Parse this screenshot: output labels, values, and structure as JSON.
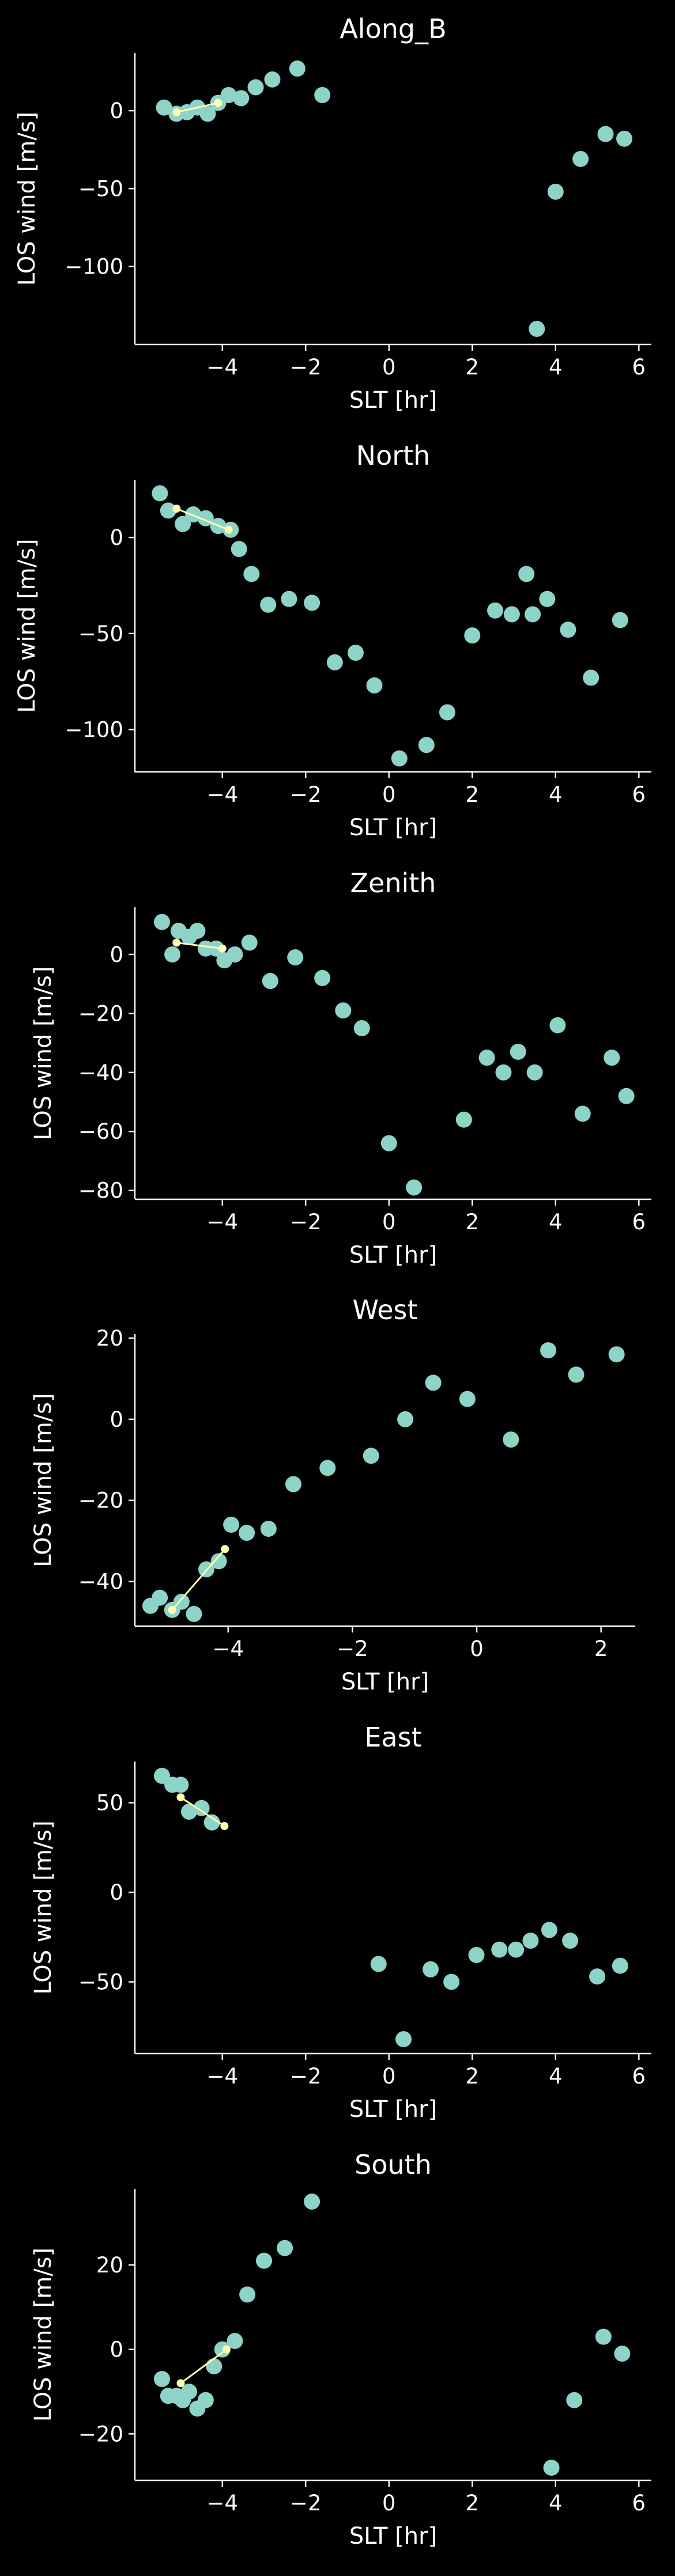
{
  "chart_data": [
    {
      "type": "scatter",
      "title": "Along_B",
      "xlabel": "SLT [hr]",
      "ylabel": "LOS wind [m/s]",
      "xlim": [
        -6.1,
        6.3
      ],
      "ylim": [
        -150,
        37
      ],
      "xticks": [
        -4,
        -2,
        0,
        2,
        4,
        6
      ],
      "yticks": [
        0,
        -50,
        -100
      ],
      "colors": {
        "points": "#8dd3c7",
        "fit": "#ffffb3",
        "axes": "#ffffff",
        "background": "#000000"
      },
      "x": [
        -5.4,
        -5.1,
        -4.85,
        -4.6,
        -4.35,
        -4.1,
        -3.85,
        -3.55,
        -3.2,
        -2.8,
        -2.2,
        -1.6,
        3.55,
        4.0,
        4.6,
        5.2,
        5.65
      ],
      "y": [
        2,
        -2,
        -1,
        2,
        -2,
        5,
        10,
        8,
        15,
        20,
        27,
        10,
        -140,
        -52,
        -31,
        -15,
        -18
      ],
      "fit_line": {
        "x": [
          -5.1,
          -4.1
        ],
        "y": [
          -1,
          5
        ]
      }
    },
    {
      "type": "scatter",
      "title": "North",
      "xlabel": "SLT [hr]",
      "ylabel": "LOS wind [m/s]",
      "xlim": [
        -6.1,
        6.3
      ],
      "ylim": [
        -122,
        30
      ],
      "xticks": [
        -4,
        -2,
        0,
        2,
        4,
        6
      ],
      "yticks": [
        0,
        -50,
        -100
      ],
      "colors": {
        "points": "#8dd3c7",
        "fit": "#ffffb3",
        "axes": "#ffffff",
        "background": "#000000"
      },
      "x": [
        -5.5,
        -5.3,
        -4.95,
        -4.7,
        -4.4,
        -4.1,
        -3.8,
        -3.6,
        -3.3,
        -2.9,
        -2.4,
        -1.85,
        -1.3,
        -0.8,
        -0.35,
        0.25,
        0.9,
        1.4,
        2.0,
        2.55,
        2.95,
        3.3,
        3.45,
        3.8,
        4.3,
        4.85,
        5.55
      ],
      "y": [
        23,
        14,
        7,
        12,
        10,
        6,
        4,
        -6,
        -19,
        -35,
        -32,
        -34,
        -65,
        -60,
        -77,
        -115,
        -108,
        -91,
        -51,
        -38,
        -40,
        -19,
        -40,
        -32,
        -48,
        -73,
        -43
      ],
      "fit_line": {
        "x": [
          -5.1,
          -3.85
        ],
        "y": [
          15,
          4
        ]
      }
    },
    {
      "type": "scatter",
      "title": "Zenith",
      "xlabel": "SLT [hr]",
      "ylabel": "LOS wind [m/s]",
      "xlim": [
        -6.1,
        6.3
      ],
      "ylim": [
        -83,
        16
      ],
      "xticks": [
        -4,
        -2,
        0,
        2,
        4,
        6
      ],
      "yticks": [
        0,
        -20,
        -40,
        -60,
        -80
      ],
      "colors": {
        "points": "#8dd3c7",
        "fit": "#ffffb3",
        "axes": "#ffffff",
        "background": "#000000"
      },
      "x": [
        -5.45,
        -5.2,
        -5.05,
        -4.8,
        -4.6,
        -4.4,
        -4.15,
        -3.95,
        -3.7,
        -3.35,
        -2.85,
        -2.25,
        -1.6,
        -1.1,
        -0.65,
        0.0,
        0.6,
        1.8,
        2.35,
        2.75,
        3.1,
        3.5,
        4.05,
        4.65,
        5.35,
        5.7
      ],
      "y": [
        11,
        0,
        8,
        6,
        8,
        2,
        2,
        -2,
        0,
        4,
        -9,
        -1,
        -8,
        -19,
        -25,
        -64,
        -79,
        -56,
        -35,
        -40,
        -33,
        -40,
        -24,
        -54,
        -35,
        -48
      ],
      "fit_line": {
        "x": [
          -5.1,
          -4.0
        ],
        "y": [
          4,
          2
        ]
      }
    },
    {
      "type": "scatter",
      "title": "West",
      "xlabel": "SLT [hr]",
      "ylabel": "LOS wind [m/s]",
      "xlim": [
        -5.5,
        2.55
      ],
      "ylim": [
        -51,
        21
      ],
      "xticks": [
        -4,
        -2,
        0,
        2
      ],
      "yticks": [
        20,
        0,
        -20,
        -40
      ],
      "colors": {
        "points": "#8dd3c7",
        "fit": "#ffffb3",
        "axes": "#ffffff",
        "background": "#000000"
      },
      "x": [
        -5.25,
        -5.1,
        -4.9,
        -4.75,
        -4.55,
        -4.35,
        -4.15,
        -3.95,
        -3.7,
        -3.35,
        -2.95,
        -2.4,
        -1.7,
        -1.15,
        -0.7,
        -0.15,
        0.55,
        1.15,
        1.6,
        2.25
      ],
      "y": [
        -46,
        -44,
        -47,
        -45,
        -48,
        -37,
        -35,
        -26,
        -28,
        -27,
        -16,
        -12,
        -9,
        0,
        9,
        5,
        -5,
        17,
        11,
        16
      ],
      "fit_line": {
        "x": [
          -4.9,
          -4.05
        ],
        "y": [
          -47,
          -32
        ]
      }
    },
    {
      "type": "scatter",
      "title": "East",
      "xlabel": "SLT [hr]",
      "ylabel": "LOS wind [m/s]",
      "xlim": [
        -6.1,
        6.3
      ],
      "ylim": [
        -90,
        73
      ],
      "xticks": [
        -4,
        -2,
        0,
        2,
        4,
        6
      ],
      "yticks": [
        50,
        0,
        -50
      ],
      "colors": {
        "points": "#8dd3c7",
        "fit": "#ffffb3",
        "axes": "#ffffff",
        "background": "#000000"
      },
      "x": [
        -5.45,
        -5.2,
        -5.0,
        -4.8,
        -4.5,
        -4.25,
        -0.25,
        0.35,
        1.0,
        1.5,
        2.1,
        2.65,
        3.05,
        3.4,
        3.85,
        4.35,
        5.0,
        5.55
      ],
      "y": [
        65,
        60,
        60,
        45,
        47,
        39,
        -40,
        -82,
        -43,
        -50,
        -35,
        -32,
        -32,
        -27,
        -21,
        -27,
        -47,
        -41
      ],
      "fit_line": {
        "x": [
          -5.0,
          -3.95
        ],
        "y": [
          53,
          37
        ]
      }
    },
    {
      "type": "scatter",
      "title": "South",
      "xlabel": "SLT [hr]",
      "ylabel": "LOS wind [m/s]",
      "xlim": [
        -6.1,
        6.3
      ],
      "ylim": [
        -31,
        38
      ],
      "xticks": [
        -4,
        -2,
        0,
        2,
        4,
        6
      ],
      "yticks": [
        20,
        0,
        -20
      ],
      "colors": {
        "points": "#8dd3c7",
        "fit": "#ffffb3",
        "axes": "#ffffff",
        "background": "#000000"
      },
      "x": [
        -5.45,
        -5.3,
        -5.1,
        -4.95,
        -4.8,
        -4.6,
        -4.4,
        -4.2,
        -4.0,
        -3.7,
        -3.4,
        -3.0,
        -2.5,
        -1.85,
        3.9,
        4.45,
        5.15,
        5.6
      ],
      "y": [
        -7,
        -11,
        -11,
        -12,
        -10,
        -14,
        -12,
        -4,
        0,
        2,
        13,
        21,
        24,
        35,
        -28,
        -12,
        3,
        -1
      ],
      "fit_line": {
        "x": [
          -5.0,
          -3.9
        ],
        "y": [
          -8,
          0
        ]
      }
    }
  ]
}
